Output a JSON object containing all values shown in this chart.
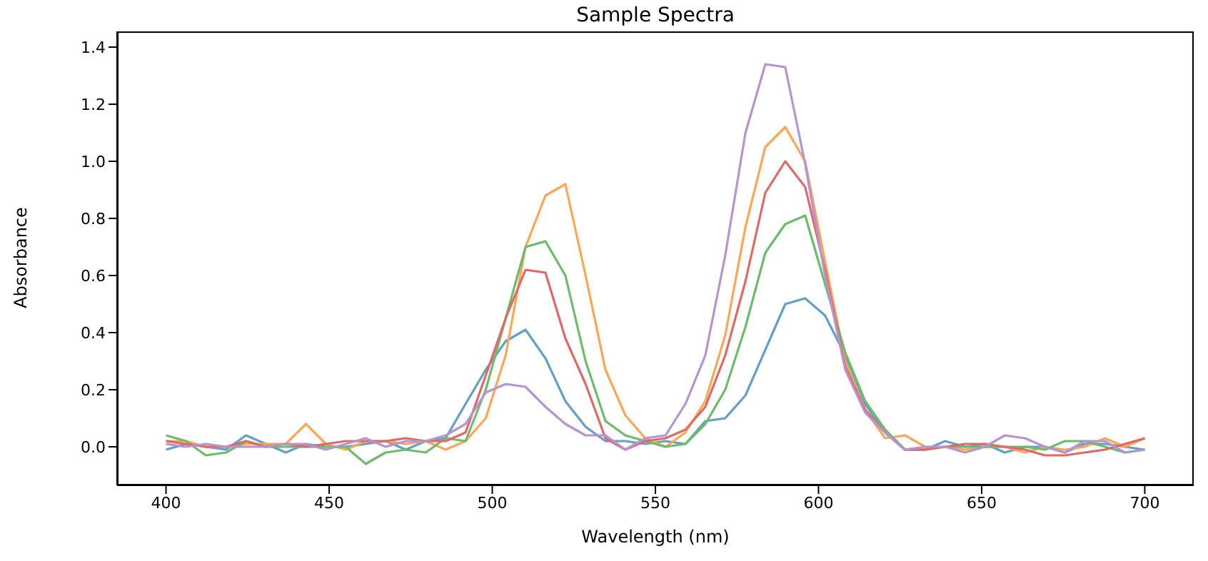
{
  "chart_data": {
    "type": "line",
    "title": "Sample Spectra",
    "xlabel": "Wavelength (nm)",
    "ylabel": "Absorbance",
    "x": [
      400,
      406.1,
      412.2,
      418.4,
      424.5,
      430.6,
      436.7,
      442.9,
      449.0,
      455.1,
      461.2,
      467.3,
      473.5,
      479.6,
      485.7,
      491.8,
      498.0,
      504.1,
      510.2,
      516.3,
      522.4,
      528.6,
      534.7,
      540.8,
      546.9,
      553.1,
      559.2,
      565.3,
      571.4,
      577.6,
      583.7,
      589.8,
      595.9,
      602.0,
      608.2,
      614.3,
      620.4,
      626.5,
      632.7,
      638.8,
      644.9,
      651.0,
      657.1,
      663.3,
      669.4,
      675.5,
      681.6,
      687.8,
      693.9,
      700
    ],
    "series": [
      {
        "color": "#62a0ca",
        "values": [
          -0.01,
          0.01,
          0.0,
          -0.01,
          0.04,
          0.01,
          -0.02,
          0.01,
          0.0,
          0.0,
          0.01,
          0.02,
          -0.01,
          0.02,
          0.03,
          0.15,
          0.27,
          0.37,
          0.41,
          0.31,
          0.16,
          0.07,
          0.02,
          0.02,
          0.01,
          0.02,
          0.01,
          0.09,
          0.1,
          0.18,
          0.34,
          0.5,
          0.52,
          0.46,
          0.32,
          0.15,
          0.05,
          -0.01,
          -0.01,
          0.02,
          0.0,
          0.01,
          -0.02,
          0.0,
          0.0,
          -0.02,
          0.01,
          0.01,
          0.0,
          -0.01
        ]
      },
      {
        "color": "#ffa556",
        "values": [
          0.02,
          0.02,
          0.0,
          0.0,
          0.01,
          0.01,
          0.01,
          0.08,
          0.01,
          -0.01,
          0.02,
          0.02,
          0.01,
          0.02,
          -0.01,
          0.02,
          0.1,
          0.32,
          0.7,
          0.88,
          0.92,
          0.6,
          0.27,
          0.11,
          0.03,
          0.0,
          0.05,
          0.16,
          0.39,
          0.77,
          1.05,
          1.12,
          1.0,
          0.65,
          0.3,
          0.13,
          0.03,
          0.04,
          0.0,
          0.0,
          -0.01,
          0.0,
          0.0,
          -0.02,
          0.0,
          -0.01,
          0.0,
          0.03,
          0.0,
          0.03
        ]
      },
      {
        "color": "#6bbc6b",
        "values": [
          0.04,
          0.02,
          -0.03,
          -0.02,
          0.02,
          0.0,
          0.0,
          0.0,
          0.0,
          0.0,
          -0.06,
          -0.02,
          -0.01,
          -0.02,
          0.03,
          0.02,
          0.2,
          0.45,
          0.7,
          0.72,
          0.6,
          0.3,
          0.09,
          0.04,
          0.02,
          0.0,
          0.01,
          0.08,
          0.2,
          0.42,
          0.68,
          0.78,
          0.81,
          0.57,
          0.33,
          0.16,
          0.06,
          -0.01,
          -0.01,
          0.0,
          0.0,
          0.0,
          0.0,
          0.0,
          -0.01,
          0.02,
          0.02,
          0.0,
          -0.02,
          -0.01
        ]
      },
      {
        "color": "#e26868",
        "values": [
          0.02,
          0.01,
          0.0,
          0.0,
          0.02,
          0.0,
          0.01,
          0.0,
          0.01,
          0.02,
          0.02,
          0.02,
          0.03,
          0.02,
          0.02,
          0.05,
          0.25,
          0.45,
          0.62,
          0.61,
          0.38,
          0.22,
          0.03,
          -0.01,
          0.02,
          0.03,
          0.06,
          0.14,
          0.32,
          0.58,
          0.89,
          1.0,
          0.91,
          0.62,
          0.28,
          0.13,
          0.05,
          -0.01,
          -0.01,
          0.0,
          0.01,
          0.01,
          0.0,
          -0.01,
          -0.03,
          -0.03,
          -0.02,
          -0.01,
          0.01,
          0.03
        ]
      },
      {
        "color": "#b494d1",
        "values": [
          0.01,
          0.0,
          0.01,
          0.0,
          0.0,
          0.0,
          0.01,
          0.01,
          -0.01,
          0.01,
          0.03,
          0.0,
          0.02,
          0.02,
          0.04,
          0.08,
          0.19,
          0.22,
          0.21,
          0.14,
          0.08,
          0.04,
          0.04,
          -0.01,
          0.03,
          0.04,
          0.15,
          0.32,
          0.67,
          1.1,
          1.34,
          1.33,
          0.99,
          0.6,
          0.27,
          0.12,
          0.05,
          -0.01,
          0.0,
          0.0,
          -0.02,
          0.0,
          0.04,
          0.03,
          0.0,
          -0.02,
          0.02,
          0.02,
          -0.02,
          -0.01
        ]
      }
    ],
    "xlim": [
      385,
      715
    ],
    "xticks": [
      400,
      450,
      500,
      550,
      600,
      650,
      700
    ],
    "ylim": [
      -0.135,
      1.455
    ],
    "yticks": [
      {
        "value": 0,
        "label": "0.0"
      },
      {
        "value": 0.2,
        "label": "0.2"
      },
      {
        "value": 0.4,
        "label": "0.4"
      },
      {
        "value": 0.6,
        "label": "0.6"
      },
      {
        "value": 0.8,
        "label": "0.8"
      },
      {
        "value": 1,
        "label": "1.0"
      },
      {
        "value": 1.2,
        "label": "1.2"
      },
      {
        "value": 1.4,
        "label": "1.4"
      }
    ]
  }
}
